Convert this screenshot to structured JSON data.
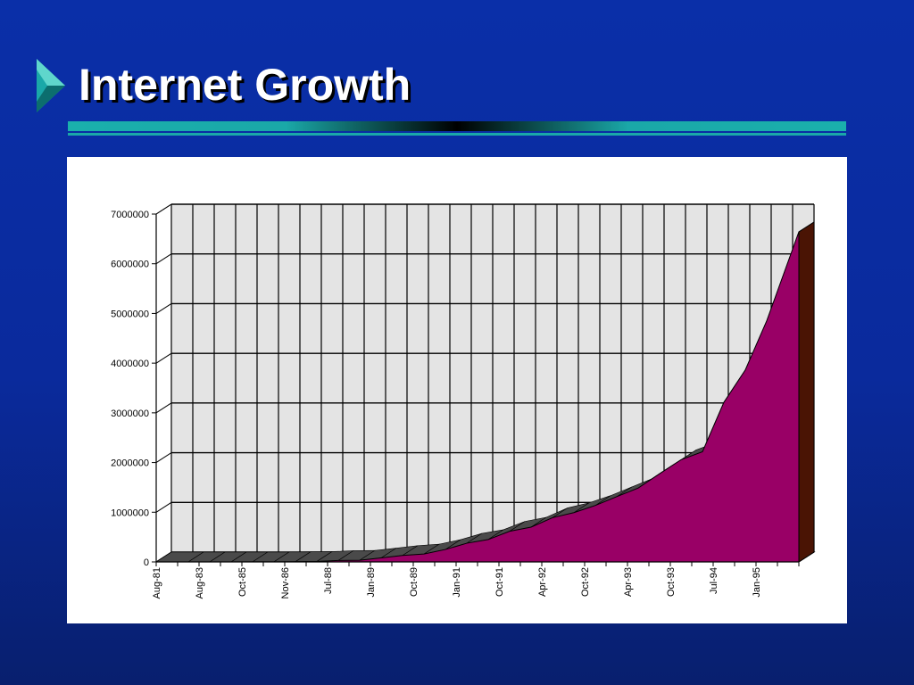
{
  "slide": {
    "title": "Internet Growth",
    "marker_icon": "triangle-bullet-icon"
  },
  "colors": {
    "background": "#0a2aa0",
    "title_text": "#ffffff",
    "accent_teal": "#1aa8a8",
    "area_front": "#990066",
    "area_side": "#4a1404",
    "area_top": "#4a4a4a",
    "chart_wall": "#e4e4e4"
  },
  "chart_data": {
    "type": "area",
    "title": "",
    "xlabel": "",
    "ylabel": "",
    "three_d": true,
    "grid": true,
    "legend": "none",
    "ylim": [
      0,
      7000000
    ],
    "y_ticks": [
      "7000000",
      "6000000",
      "5000000",
      "4000000",
      "3000000",
      "2000000",
      "1000000",
      "0"
    ],
    "x_tick_labels": [
      "Aug-81",
      "Aug-83",
      "Oct-85",
      "Nov-86",
      "Jul-88",
      "Jan-89",
      "Oct-89",
      "Jan-91",
      "Oct-91",
      "Apr-92",
      "Oct-92",
      "Apr-93",
      "Oct-93",
      "Jul-94",
      "Jan-95"
    ],
    "categories": [
      "Aug-81",
      "",
      "Aug-83",
      "",
      "Oct-85",
      "",
      "Nov-86",
      "",
      "Jul-88",
      "",
      "Jan-89",
      "",
      "Oct-89",
      "",
      "Jan-91",
      "",
      "Oct-91",
      "",
      "Apr-92",
      "",
      "Oct-92",
      "",
      "Apr-93",
      "",
      "Oct-93",
      "",
      "Jul-94",
      "",
      "Jan-95",
      ""
    ],
    "series": [
      {
        "values": [
          213,
          235,
          562,
          1024,
          1961,
          2308,
          5089,
          10000,
          28174,
          33000,
          80000,
          130000,
          159000,
          250000,
          376000,
          450000,
          617000,
          700000,
          890000,
          992000,
          1136000,
          1313000,
          1486000,
          1776000,
          2056000,
          2217000,
          3212000,
          3864000,
          4852000,
          6642000
        ]
      }
    ]
  }
}
